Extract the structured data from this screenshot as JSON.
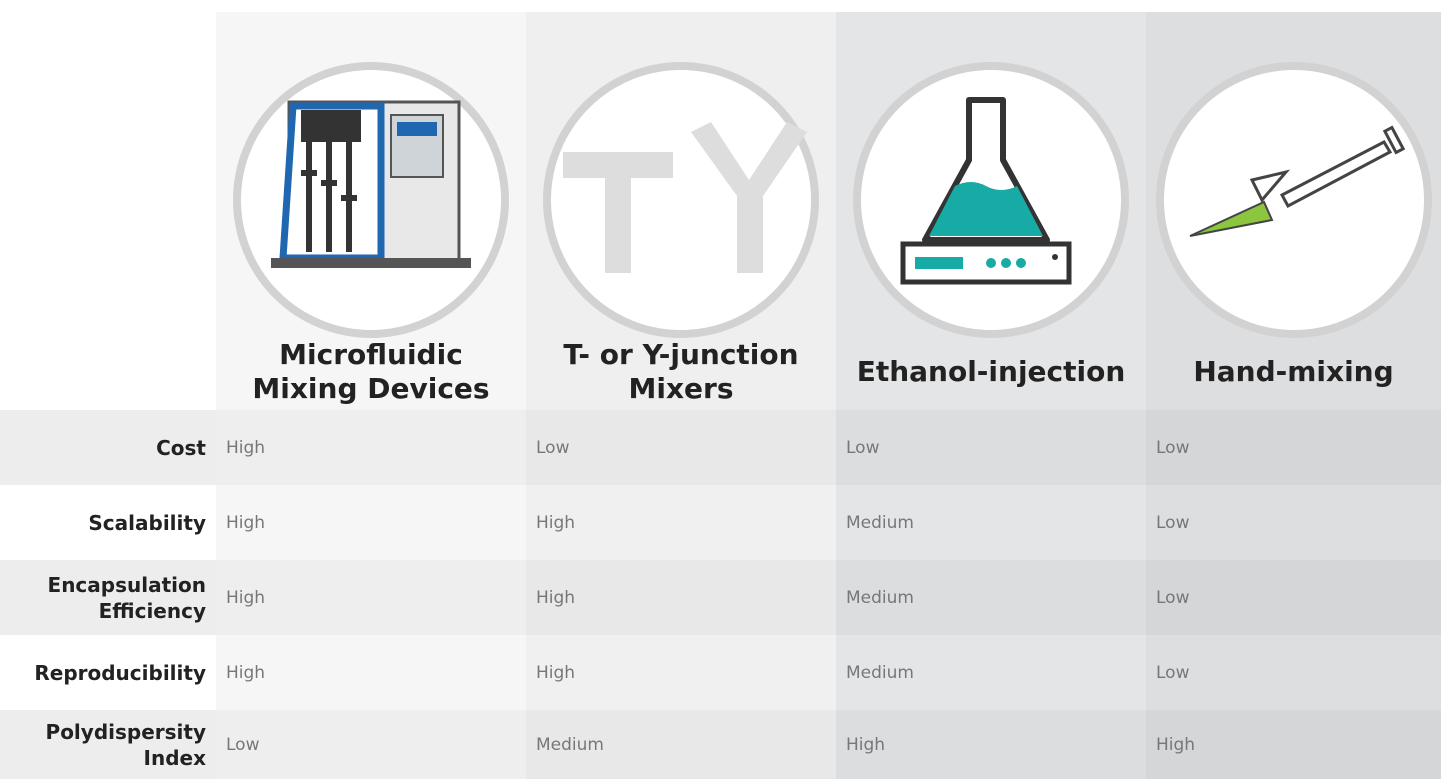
{
  "columns": [
    {
      "title": "Microfluidic Mixing Devices"
    },
    {
      "title": "T- or Y-junction Mixers"
    },
    {
      "title": "Ethanol-injection"
    },
    {
      "title": "Hand-mixing"
    }
  ],
  "rows": [
    {
      "label": "Cost",
      "values": [
        "High",
        "Low",
        "Low",
        "Low"
      ]
    },
    {
      "label": "Scalability",
      "values": [
        "High",
        "High",
        "Medium",
        "Low"
      ]
    },
    {
      "label": "Encapsulation Efficiency",
      "values": [
        "High",
        "High",
        "Medium",
        "Low"
      ]
    },
    {
      "label": "Reproducibility",
      "values": [
        "High",
        "High",
        "Medium",
        "Low"
      ]
    },
    {
      "label": "Polydispersity Index",
      "values": [
        "Low",
        "Medium",
        "High",
        "High"
      ]
    }
  ]
}
